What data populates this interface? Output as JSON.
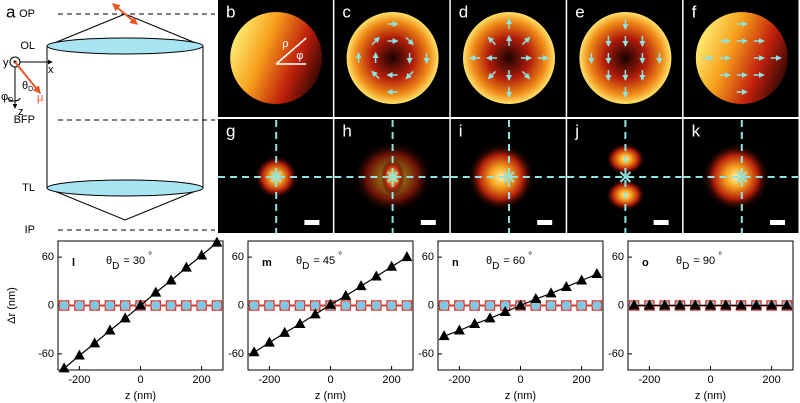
{
  "schematic": {
    "label": "a",
    "planes": [
      "OP",
      "OL",
      "BFP",
      "TL",
      "IP"
    ],
    "axis_x": "x",
    "axis_y": "y",
    "axis_z": "z",
    "theta": "θ",
    "theta_sub": "D",
    "phi": "φ",
    "phi_sub": "D",
    "dipole": "μ"
  },
  "pupil_images": [
    {
      "label": "b",
      "rho": "ρ",
      "phi": "φ"
    },
    {
      "label": "c"
    },
    {
      "label": "d"
    },
    {
      "label": "e"
    },
    {
      "label": "f"
    }
  ],
  "psf_images": [
    {
      "label": "g"
    },
    {
      "label": "h"
    },
    {
      "label": "i"
    },
    {
      "label": "j"
    },
    {
      "label": "k"
    }
  ],
  "chart_data": [
    {
      "type": "line",
      "label": "l",
      "title": {
        "symbol": "θ",
        "subscript": "D",
        "text": "= 30",
        "superscript": "°"
      },
      "xlabel": "z (nm)",
      "ylabel": "Δr (nm)",
      "x": [
        -250,
        -200,
        -150,
        -100,
        -50,
        0,
        50,
        100,
        150,
        200,
        250
      ],
      "series": [
        {
          "color": "#d9382c",
          "marker": "square",
          "values": [
            0,
            0,
            0,
            0,
            0,
            0,
            0,
            0,
            0,
            0,
            0
          ]
        },
        {
          "color": "#7ec8e3",
          "marker": "circle",
          "values": [
            0,
            0,
            0,
            0,
            0,
            0,
            0,
            0,
            0,
            0,
            0
          ]
        },
        {
          "color": "#000000",
          "marker": "triangle",
          "values": [
            -78,
            -62,
            -47,
            -31,
            -16,
            0,
            16,
            31,
            47,
            62,
            78
          ]
        }
      ],
      "xlim": [
        -270,
        270
      ],
      "ylim": [
        -80,
        80
      ],
      "xticks": [
        -200,
        0,
        200
      ],
      "yticks": [
        -60,
        0,
        60
      ]
    },
    {
      "type": "line",
      "label": "m",
      "title": {
        "symbol": "θ",
        "subscript": "D",
        "text": "= 45",
        "superscript": "°"
      },
      "xlabel": "z (nm)",
      "x": [
        -250,
        -200,
        -150,
        -100,
        -50,
        0,
        50,
        100,
        150,
        200,
        250
      ],
      "series": [
        {
          "color": "#d9382c",
          "marker": "square",
          "values": [
            0,
            0,
            0,
            0,
            0,
            0,
            0,
            0,
            0,
            0,
            0
          ]
        },
        {
          "color": "#7ec8e3",
          "marker": "circle",
          "values": [
            0,
            0,
            0,
            0,
            0,
            0,
            0,
            0,
            0,
            0,
            0
          ]
        },
        {
          "color": "#000000",
          "marker": "triangle",
          "values": [
            -58,
            -46,
            -34,
            -23,
            -11,
            1,
            12,
            24,
            36,
            48,
            60
          ]
        }
      ],
      "xlim": [
        -270,
        270
      ],
      "ylim": [
        -80,
        80
      ],
      "xticks": [
        -200,
        0,
        200
      ],
      "yticks": [
        -60,
        0,
        60
      ]
    },
    {
      "type": "line",
      "label": "n",
      "title": {
        "symbol": "θ",
        "subscript": "D",
        "text": "= 60",
        "superscript": "°"
      },
      "xlabel": "z (nm)",
      "x": [
        -250,
        -200,
        -150,
        -100,
        -50,
        0,
        50,
        100,
        150,
        200,
        250
      ],
      "series": [
        {
          "color": "#d9382c",
          "marker": "square",
          "values": [
            0,
            0,
            0,
            0,
            0,
            0,
            0,
            0,
            0,
            0,
            0
          ]
        },
        {
          "color": "#7ec8e3",
          "marker": "circle",
          "values": [
            0,
            0,
            0,
            0,
            0,
            0,
            0,
            0,
            0,
            0,
            0
          ]
        },
        {
          "color": "#000000",
          "marker": "triangle",
          "values": [
            -38,
            -31,
            -23,
            -16,
            -8,
            0,
            8,
            15,
            23,
            31,
            39
          ]
        }
      ],
      "xlim": [
        -270,
        270
      ],
      "ylim": [
        -80,
        80
      ],
      "xticks": [
        -200,
        0,
        200
      ],
      "yticks": [
        -60,
        0,
        60
      ]
    },
    {
      "type": "line",
      "label": "o",
      "title": {
        "symbol": "θ",
        "subscript": "D",
        "text": "= 90",
        "superscript": "°"
      },
      "xlabel": "z (nm)",
      "x": [
        -250,
        -200,
        -150,
        -100,
        -50,
        0,
        50,
        100,
        150,
        200,
        250
      ],
      "series": [
        {
          "color": "#d9382c",
          "marker": "square",
          "values": [
            0,
            0,
            0,
            0,
            0,
            0,
            0,
            0,
            0,
            0,
            0
          ]
        },
        {
          "color": "#7ec8e3",
          "marker": "circle",
          "values": [
            0,
            0,
            0,
            0,
            0,
            0,
            0,
            0,
            0,
            0,
            0
          ]
        },
        {
          "color": "#000000",
          "marker": "triangle",
          "values": [
            0,
            0,
            0,
            0,
            0,
            0,
            0,
            0,
            0,
            0,
            0
          ]
        }
      ],
      "xlim": [
        -270,
        270
      ],
      "ylim": [
        -80,
        80
      ],
      "xticks": [
        -200,
        0,
        200
      ],
      "yticks": [
        -60,
        0,
        60
      ]
    }
  ]
}
